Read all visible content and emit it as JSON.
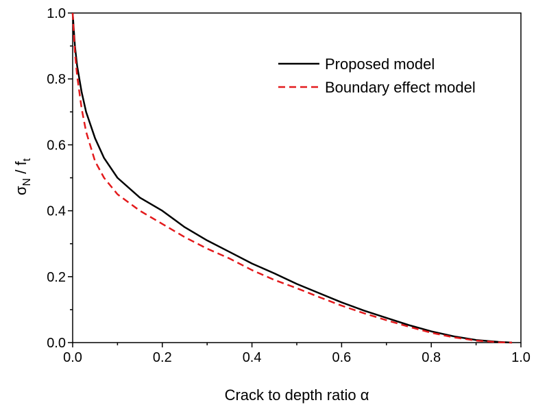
{
  "chart_data": {
    "type": "line",
    "xlabel_text": "Crack to depth ratio",
    "xlabel_symbol": "α",
    "ylabel_main": "σ",
    "ylabel_sub1": "N",
    "ylabel_slash": " / f",
    "ylabel_sub2": "t",
    "xlim": [
      0,
      1
    ],
    "ylim": [
      0,
      1
    ],
    "x_ticks": [
      0,
      0.2,
      0.4,
      0.6,
      0.8,
      1.0
    ],
    "x_tick_labels": [
      "0.0",
      "0.2",
      "0.4",
      "0.6",
      "0.8",
      "1.0"
    ],
    "y_ticks": [
      0,
      0.2,
      0.4,
      0.6,
      0.8,
      1.0
    ],
    "y_tick_labels": [
      "0.0",
      "0.2",
      "0.4",
      "0.6",
      "0.8",
      "1.0"
    ],
    "legend_position": "top-right",
    "grid": false,
    "series": [
      {
        "name": "Proposed model",
        "color": "#000000",
        "style": "solid",
        "x": [
          0,
          0.005,
          0.01,
          0.02,
          0.03,
          0.05,
          0.07,
          0.1,
          0.15,
          0.2,
          0.25,
          0.3,
          0.35,
          0.4,
          0.45,
          0.5,
          0.55,
          0.6,
          0.65,
          0.7,
          0.75,
          0.8,
          0.85,
          0.9,
          0.95,
          0.98
        ],
        "y": [
          1.0,
          0.9,
          0.84,
          0.76,
          0.7,
          0.62,
          0.56,
          0.5,
          0.44,
          0.4,
          0.35,
          0.31,
          0.275,
          0.24,
          0.21,
          0.178,
          0.15,
          0.122,
          0.097,
          0.075,
          0.053,
          0.034,
          0.019,
          0.008,
          0.002,
          0.0
        ]
      },
      {
        "name": "Boundary effect model",
        "color": "#e31a1c",
        "style": "dashed",
        "x": [
          0,
          0.005,
          0.01,
          0.02,
          0.03,
          0.05,
          0.07,
          0.1,
          0.15,
          0.2,
          0.25,
          0.3,
          0.35,
          0.4,
          0.45,
          0.5,
          0.55,
          0.6,
          0.65,
          0.7,
          0.75,
          0.8,
          0.85,
          0.9,
          0.95,
          0.98
        ],
        "y": [
          1.0,
          0.88,
          0.81,
          0.71,
          0.64,
          0.55,
          0.5,
          0.45,
          0.4,
          0.36,
          0.32,
          0.285,
          0.255,
          0.22,
          0.19,
          0.165,
          0.138,
          0.112,
          0.089,
          0.068,
          0.048,
          0.03,
          0.016,
          0.006,
          0.001,
          0.0
        ]
      }
    ]
  }
}
